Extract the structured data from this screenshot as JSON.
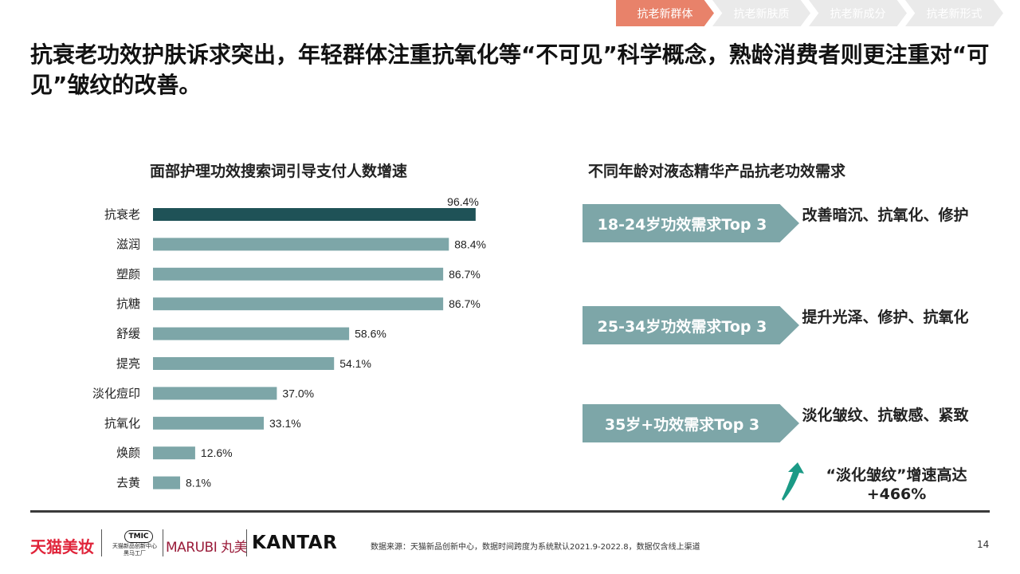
{
  "nav": {
    "tabs": [
      "抗老新群体",
      "抗老新肤质",
      "抗老新成分",
      "抗老新形式"
    ],
    "active_color": "#e8826a",
    "inactive_color": "#eaeaea"
  },
  "headline": "抗衰老功效护肤诉求突出，年轻群体注重抗氧化等“不可见”科学概念，熟龄消费者则更注重对“可见”皱纹的改善。",
  "left_title": "面部护理功效搜索词引导支付人数增速",
  "right_title": "不同年龄对液态精华产品抗老功效需求",
  "chart_data": {
    "type": "bar",
    "orientation": "horizontal",
    "categories": [
      "抗衰老",
      "滋润",
      "塑颜",
      "抗糖",
      "舒缓",
      "提亮",
      "淡化痘印",
      "抗氧化",
      "焕颜",
      "去黄"
    ],
    "values": [
      96.4,
      88.4,
      86.7,
      86.7,
      58.6,
      54.1,
      37.0,
      33.1,
      12.6,
      8.1
    ],
    "labels": [
      "96.4%",
      "88.4%",
      "86.7%",
      "86.7%",
      "58.6%",
      "54.1%",
      "37.0%",
      "33.1%",
      "12.6%",
      "8.1%"
    ],
    "highlight_color": "#1f5257",
    "bar_color": "#7da6a8",
    "xlim": [
      0,
      100
    ]
  },
  "demand": [
    {
      "label": "18-24岁功效需求Top 3",
      "text": "改善暗沉、抗氧化、修护"
    },
    {
      "label": "25-34岁功效需求Top 3",
      "text": "提升光泽、修护、抗氧化"
    },
    {
      "label": "35岁+功效需求Top 3",
      "text": "淡化皱纹、抗敏感、紧致"
    }
  ],
  "trend": {
    "icon": "up-arrow-icon",
    "line1": "“淡化皱纹”增速高达",
    "line2": "+466%",
    "color": "#1b9a86"
  },
  "footer": {
    "tmall": "天猫美妆",
    "tmic_badge": "TMIC",
    "tmic_sub1": "天猫新品创新中心",
    "tmic_sub2": "黑马工厂",
    "marubi": "MARUBI 丸美",
    "kantar": "KANTAR",
    "source": "数据来源：天猫新品创新中心，数据时间跨度为系统默认2021.9-2022.8，数据仅含线上渠道",
    "page": "14"
  }
}
